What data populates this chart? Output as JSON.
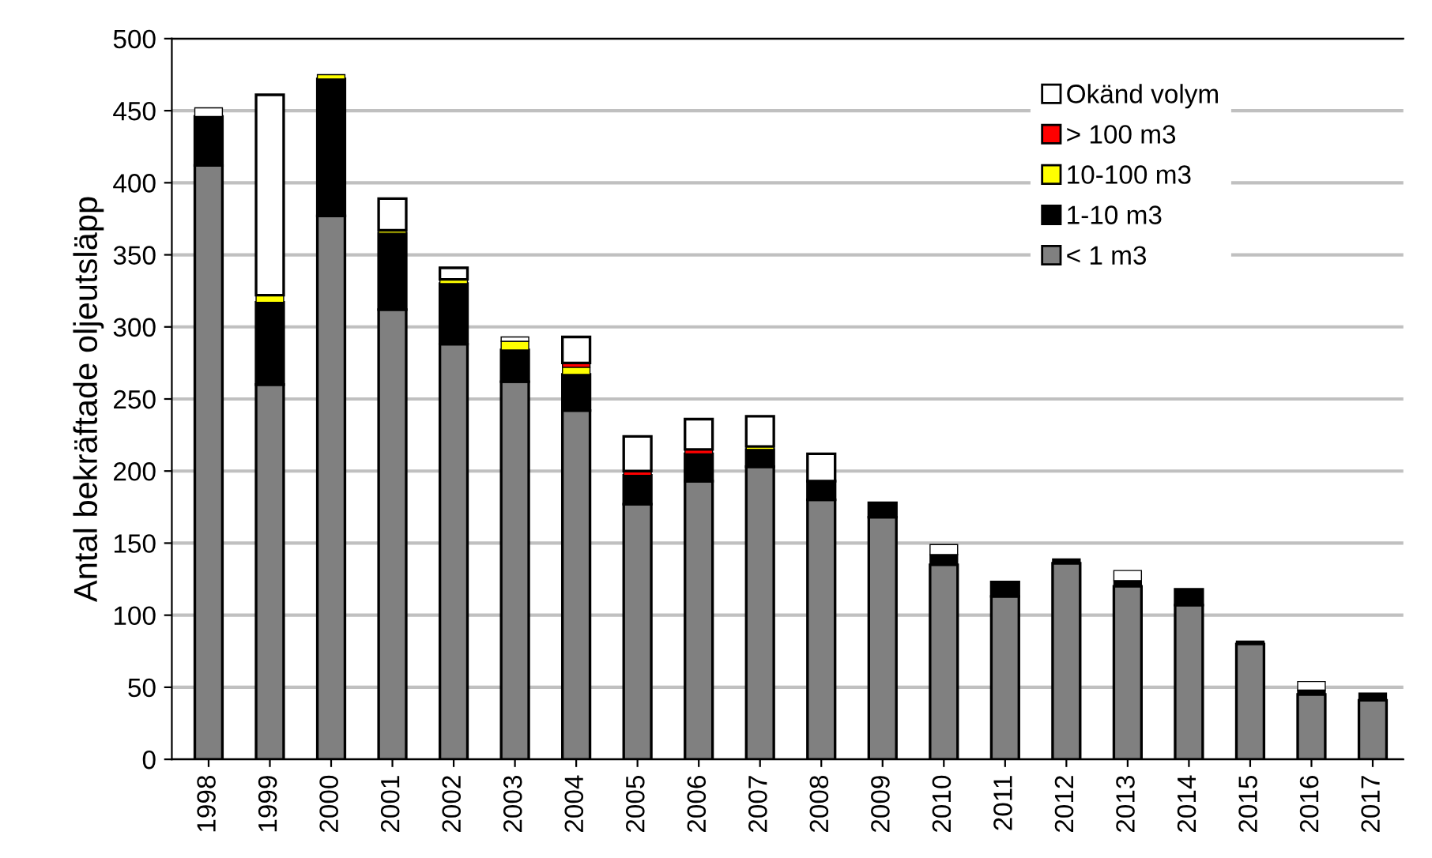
{
  "chart_data": {
    "type": "bar",
    "stacked": true,
    "ylabel": "Antal bekräftade oljeutsläpp",
    "categories": [
      "1998",
      "1999",
      "2000",
      "2001",
      "2002",
      "2003",
      "2004",
      "2005",
      "2006",
      "2007",
      "2008",
      "2009",
      "2010",
      "2011",
      "2012",
      "2013",
      "2014",
      "2015",
      "2016",
      "2017"
    ],
    "series": [
      {
        "name": "< 1 m3",
        "color": "#808080",
        "values": [
          412,
          260,
          377,
          312,
          288,
          262,
          242,
          177,
          193,
          203,
          180,
          168,
          135,
          113,
          136,
          120,
          107,
          80,
          45,
          41
        ]
      },
      {
        "name": "1-10 m3",
        "color": "#000000",
        "values": [
          34,
          57,
          95,
          53,
          42,
          22,
          25,
          20,
          19,
          12,
          13,
          10,
          7,
          10,
          3,
          4,
          11,
          2,
          3,
          5
        ]
      },
      {
        "name": "10-100 m3",
        "color": "#ffff00",
        "values": [
          0,
          5,
          3,
          2,
          3,
          6,
          5,
          0,
          0,
          2,
          0,
          0,
          0,
          0,
          0,
          0,
          0,
          0,
          0,
          0
        ]
      },
      {
        "name": "> 100 m3",
        "color": "#ff0000",
        "values": [
          0,
          0,
          0,
          0,
          0,
          0,
          3,
          3,
          3,
          0,
          0,
          0,
          0,
          0,
          0,
          0,
          0,
          0,
          0,
          0
        ]
      },
      {
        "name": "Okänd volym",
        "color": "#ffffff",
        "values": [
          6,
          139,
          0,
          22,
          8,
          3,
          18,
          24,
          21,
          21,
          19,
          0,
          7,
          0,
          0,
          7,
          0,
          0,
          6,
          0
        ]
      }
    ],
    "ylim": [
      0,
      500
    ],
    "yticks": [
      0,
      50,
      100,
      150,
      200,
      250,
      300,
      350,
      400,
      450,
      500
    ],
    "grid": "y",
    "legend": "top right"
  }
}
